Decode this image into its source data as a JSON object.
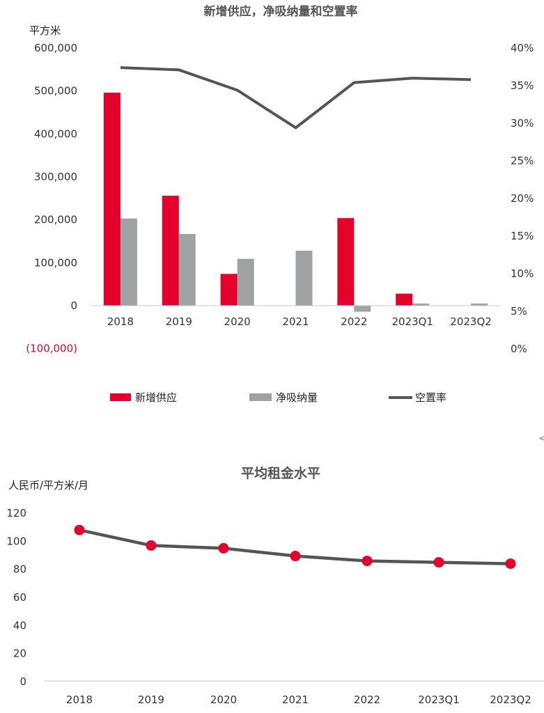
{
  "chart_data": [
    {
      "type": "bar",
      "title": "新增供应，净吸纳量和空置率",
      "ylabel": "平方米",
      "categories": [
        "2018",
        "2019",
        "2020",
        "2021",
        "2022",
        "2023Q1",
        "2023Q2"
      ],
      "ylim": [
        -100000,
        600000
      ],
      "y_ticks": [
        "(100,000)",
        "0",
        "100,000",
        "200,000",
        "300,000",
        "400,000",
        "500,000",
        "600,000"
      ],
      "y_tick_values": [
        -100000,
        0,
        100000,
        200000,
        300000,
        400000,
        500000,
        600000
      ],
      "y2lim": [
        0,
        40
      ],
      "y2_ticks": [
        "0%",
        "5%",
        "10%",
        "15%",
        "20%",
        "25%",
        "30%",
        "35%",
        "40%"
      ],
      "y2_tick_values": [
        0,
        5,
        10,
        15,
        20,
        25,
        30,
        35,
        40
      ],
      "series": [
        {
          "name": "新增供应",
          "kind": "bar",
          "axis": "left",
          "color": "#e4002b",
          "values": [
            496000,
            256000,
            74000,
            0,
            204000,
            28000,
            0
          ]
        },
        {
          "name": "净吸纳量",
          "kind": "bar",
          "axis": "left",
          "color": "#a0a1a3",
          "values": [
            203000,
            167000,
            109000,
            128000,
            -14000,
            5000,
            5000
          ]
        },
        {
          "name": "空置率",
          "kind": "line",
          "axis": "right",
          "color": "#555555",
          "values": [
            37.4,
            37.1,
            34.4,
            29.4,
            35.4,
            36.0,
            35.8
          ]
        }
      ],
      "legend": "bottom",
      "grid": false
    },
    {
      "type": "line",
      "title": "平均租金水平",
      "ylabel": "人民币/平方米/月",
      "categories": [
        "2018",
        "2019",
        "2020",
        "2021",
        "2022",
        "2023Q1",
        "2023Q2"
      ],
      "ylim": [
        0,
        120
      ],
      "y_ticks": [
        "0",
        "20",
        "40",
        "60",
        "80",
        "100",
        "120"
      ],
      "y_tick_values": [
        0,
        20,
        40,
        60,
        80,
        100,
        120
      ],
      "series": [
        {
          "name": "",
          "color": "#555555",
          "marker_color": "#e4002b",
          "values": [
            107.5,
            96.5,
            94.5,
            89.0,
            85.5,
            84.5,
            83.5
          ]
        }
      ],
      "grid": false
    }
  ],
  "corner_mark": "<"
}
